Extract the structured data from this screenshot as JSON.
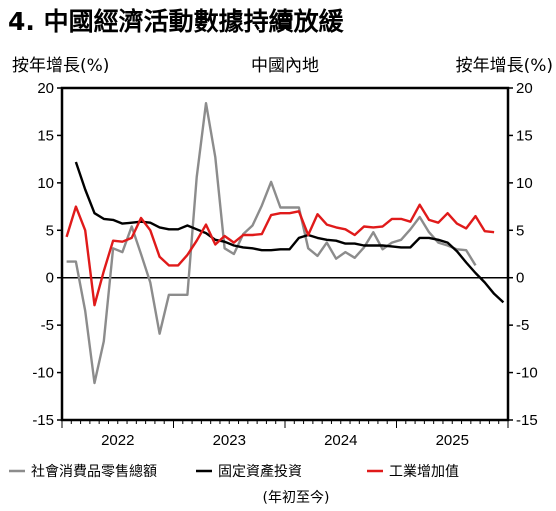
{
  "title": "4. 中國經濟活動數據持續放緩",
  "chart_data": {
    "type": "line",
    "subtitle": "中國內地",
    "ylabel_left": "按年增長(%)",
    "ylabel_right": "按年增長(%)",
    "ylim": [
      -15,
      20
    ],
    "yticks": [
      20,
      15,
      10,
      5,
      0,
      -5,
      -10,
      -15
    ],
    "grid": false,
    "x_start": "2022-01",
    "year_labels": [
      "2022",
      "2023",
      "2024",
      "2025"
    ],
    "legend_position": "bottom",
    "legend_note": "(年初至今)",
    "series": [
      {
        "name": "社會消費品零售總額",
        "color": "#8c8c8c",
        "start_index": 0,
        "values": [
          1.7,
          1.7,
          -3.5,
          -11.1,
          -6.7,
          3.1,
          2.7,
          5.4,
          2.5,
          -0.5,
          -5.9,
          -1.8,
          -1.8,
          -1.8,
          10.6,
          18.4,
          12.7,
          3.1,
          2.5,
          4.6,
          5.5,
          7.6,
          10.1,
          7.4,
          7.4,
          7.4,
          3.1,
          2.3,
          3.7,
          2.0,
          2.7,
          2.1,
          3.2,
          4.8,
          3.0,
          3.7,
          4.0,
          5.1,
          6.4,
          4.8,
          3.7,
          3.4,
          3.0,
          2.9,
          1.3
        ]
      },
      {
        "name": "固定資產投資",
        "color": "#000000",
        "start_index": 1,
        "values": [
          12.2,
          9.3,
          6.8,
          6.2,
          6.1,
          5.7,
          5.8,
          5.9,
          5.8,
          5.3,
          5.1,
          5.1,
          5.5,
          5.1,
          4.7,
          4.0,
          3.8,
          3.4,
          3.2,
          3.1,
          2.9,
          2.9,
          3.0,
          3.0,
          4.2,
          4.5,
          4.2,
          4.0,
          3.9,
          3.6,
          3.6,
          3.4,
          3.4,
          3.4,
          3.3,
          3.2,
          3.2,
          4.2,
          4.2,
          4.0,
          3.7,
          2.8,
          1.6,
          0.5,
          -0.5,
          -1.7,
          -2.6
        ]
      },
      {
        "name": "工業增加值",
        "color": "#e01a1a",
        "start_index": 0,
        "values": [
          4.3,
          7.5,
          5.0,
          -2.9,
          0.7,
          3.9,
          3.8,
          4.2,
          6.3,
          5.0,
          2.2,
          1.3,
          1.3,
          2.4,
          3.9,
          5.6,
          3.5,
          4.4,
          3.7,
          4.5,
          4.5,
          4.6,
          6.6,
          6.8,
          6.8,
          7.0,
          4.5,
          6.7,
          5.6,
          5.3,
          5.1,
          4.5,
          5.4,
          5.3,
          5.4,
          6.2,
          6.2,
          5.9,
          7.7,
          6.1,
          5.8,
          6.8,
          5.7,
          5.2,
          6.5,
          4.9,
          4.8
        ]
      }
    ]
  }
}
